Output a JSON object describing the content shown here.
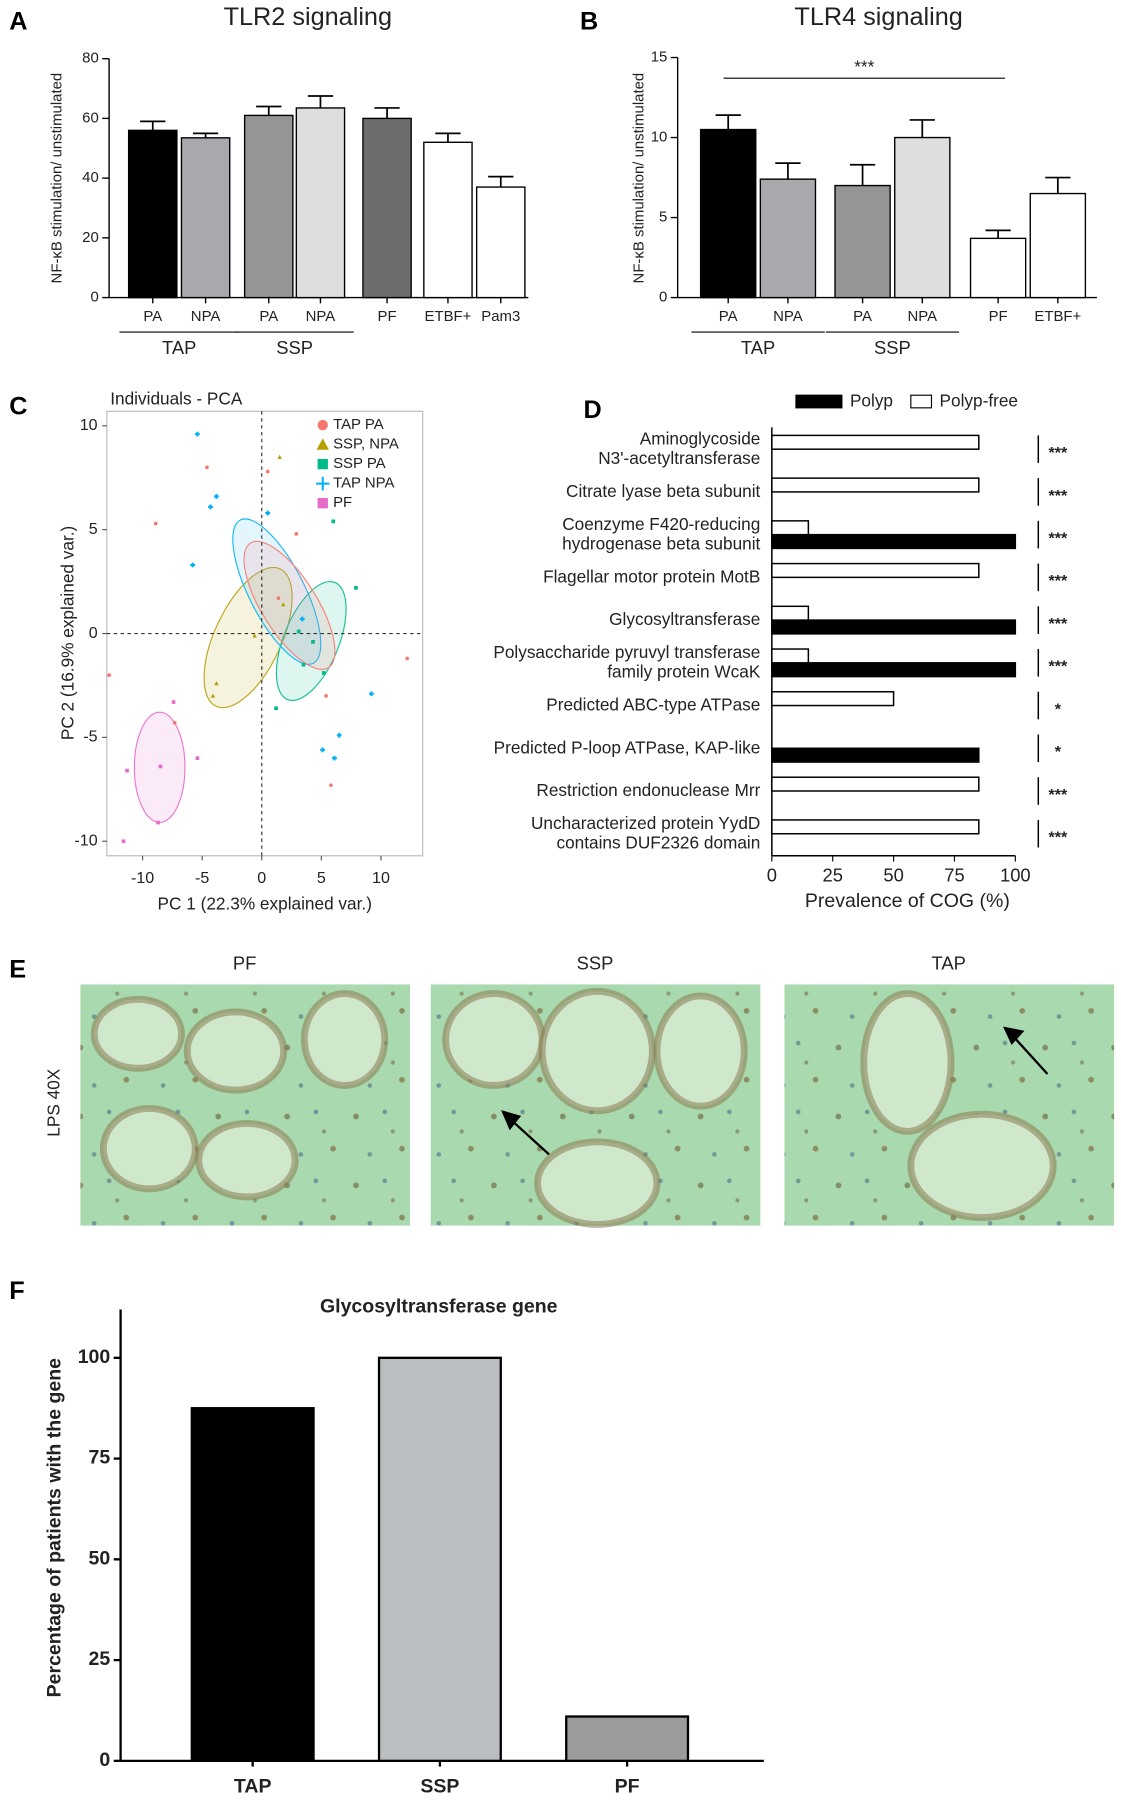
{
  "chart_data": [
    {
      "type": "bar",
      "panel": "A",
      "title": "TLR2 signaling",
      "ylabel": "NF-κB stimulation/ unstimulated",
      "categories": [
        "PA",
        "NPA",
        "PA",
        "NPA",
        "PF",
        "ETBF+",
        "Pam3"
      ],
      "groups": [
        "TAP",
        "TAP",
        "SSP",
        "SSP",
        null,
        null,
        null
      ],
      "values": [
        56,
        53.5,
        61,
        63.5,
        60,
        52,
        37
      ],
      "errors": [
        3,
        1.5,
        3,
        4,
        3.5,
        3,
        3.5
      ],
      "colors": [
        "#000000",
        "#a9a9ad",
        "#959595",
        "#dcdfdc",
        "#6d6d6d",
        "#ffffff",
        "#ffffff"
      ],
      "ylim": [
        0,
        80
      ],
      "yticks": [
        0,
        20,
        40,
        60,
        80
      ]
    },
    {
      "type": "bar",
      "panel": "B",
      "title": "TLR4 signaling",
      "ylabel": "NF-κB stimulation/ unstimulated",
      "categories": [
        "PA",
        "NPA",
        "PA",
        "NPA",
        "PF",
        "ETBF+"
      ],
      "groups": [
        "TAP",
        "TAP",
        "SSP",
        "SSP",
        null,
        null
      ],
      "values": [
        10.5,
        7.4,
        7.0,
        10.0,
        3.7,
        6.5
      ],
      "errors": [
        0.9,
        1.0,
        1.3,
        1.1,
        0.5,
        1.0
      ],
      "colors": [
        "#000000",
        "#a9a9ad",
        "#959595",
        "#dcdfdc",
        "#ffffff",
        "#ffffff"
      ],
      "annotation": "***",
      "ylim": [
        0,
        15
      ],
      "yticks": [
        0,
        5,
        10,
        15
      ]
    },
    {
      "type": "scatter",
      "panel": "C",
      "title": "Individuals - PCA",
      "xlabel": "PC 1 (22.3% explained var.)",
      "ylabel": "PC 2 (16.9% explained var.)",
      "xlim": [
        -13,
        13.5
      ],
      "ylim": [
        -10.7,
        10.7
      ],
      "xticks": [
        -10,
        -5,
        0,
        5,
        10
      ],
      "yticks": [
        -10,
        -5,
        0,
        5,
        10
      ],
      "series": [
        {
          "name": "TAP PA",
          "color": "#f8766d",
          "marker": "circle",
          "x": [
            -4.6,
            -8.9,
            1.4,
            2.9,
            5.4,
            5.8,
            12.2,
            -7.3,
            -12.8,
            0.5
          ],
          "y": [
            8.0,
            5.3,
            1.7,
            4.8,
            -3.0,
            -7.3,
            -1.2,
            -4.3,
            -2.0,
            7.8
          ]
        },
        {
          "name": "SSP, NPA",
          "color": "#b79f00",
          "marker": "triangle",
          "x": [
            1.5,
            -3.8,
            -4.1,
            -0.6,
            1.8
          ],
          "y": [
            8.5,
            -2.4,
            -3.0,
            -0.1,
            1.4
          ]
        },
        {
          "name": "SSP PA",
          "color": "#00ba8a",
          "marker": "square",
          "x": [
            6.0,
            7.9,
            4.3,
            3.5,
            1.2,
            5.2,
            3.1
          ],
          "y": [
            5.4,
            2.2,
            -0.4,
            -1.5,
            -3.6,
            -1.9,
            0.1
          ]
        },
        {
          "name": "TAP NPA",
          "color": "#00b0f6",
          "marker": "cross",
          "x": [
            -5.4,
            -3.8,
            -4.3,
            -5.8,
            0.5,
            6.5,
            6.1,
            5.1,
            9.2,
            3.4
          ],
          "y": [
            9.6,
            6.6,
            6.1,
            3.3,
            5.8,
            -4.9,
            -6.0,
            -5.6,
            -2.9,
            0.7
          ]
        },
        {
          "name": "PF",
          "color": "#e76bc8",
          "marker": "square",
          "x": [
            -11.3,
            -11.6,
            -8.7,
            -7.4,
            -5.4,
            -8.5
          ],
          "y": [
            -6.6,
            -10.0,
            -9.1,
            -3.3,
            -6.0,
            -6.4
          ]
        }
      ]
    },
    {
      "type": "hbar",
      "panel": "D",
      "xlabel": "Prevalence of COG (%)",
      "categories": [
        "Aminoglycoside\nN3'-acetyltransferase",
        "Citrate lyase beta subunit",
        "Coenzyme F420-reducing\nhydrogenase beta subunit",
        "Flagellar motor protein MotB",
        "Glycosyltransferase",
        "Polysaccharide pyruvyl transferase\nfamily protein WcaK",
        "Predicted ABC-type ATPase",
        "Predicted P-loop ATPase, KAP-like",
        "Restriction endonuclease Mrr",
        "Uncharacterized protein YydD\ncontains DUF2326 domain"
      ],
      "significance": [
        "***",
        "***",
        "***",
        "***",
        "***",
        "***",
        "*",
        "*",
        "***",
        "***"
      ],
      "series": [
        {
          "name": "Polyp",
          "color": "#000000",
          "values": [
            0,
            0,
            100,
            0,
            100,
            100,
            0,
            85,
            0,
            0
          ]
        },
        {
          "name": "Polyp-free",
          "color": "#ffffff",
          "values": [
            85,
            85,
            15,
            85,
            15,
            15,
            50,
            0,
            85,
            85
          ]
        }
      ],
      "xlim": [
        0,
        100
      ],
      "xticks": [
        0,
        25,
        50,
        75,
        100
      ]
    },
    {
      "type": "bar",
      "panel": "F",
      "title": "Glycosyltransferase gene",
      "ylabel": "Percentage of patients with the gene",
      "categories": [
        "TAP",
        "SSP",
        "PF"
      ],
      "values": [
        87.5,
        100,
        11
      ],
      "colors": [
        "#000000",
        "#bbbec0",
        "#9a9c9a"
      ],
      "ylim": [
        0,
        112
      ],
      "yticks": [
        0,
        25,
        50,
        75,
        100
      ]
    }
  ],
  "panel_e": {
    "panel": "E",
    "stain": "LPS  40X",
    "images": [
      "PF",
      "SSP",
      "TAP"
    ]
  }
}
